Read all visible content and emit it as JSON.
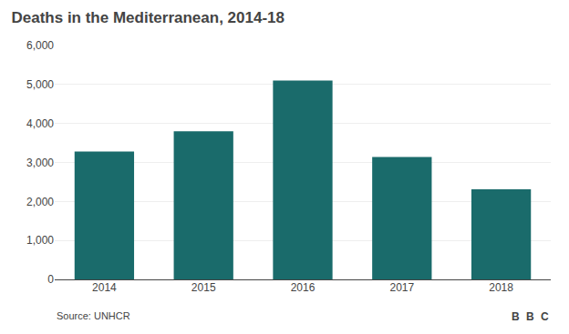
{
  "chart_data": {
    "type": "bar",
    "title": "Deaths in the Mediterranean, 2014-18",
    "categories": [
      "2014",
      "2015",
      "2016",
      "2017",
      "2018"
    ],
    "values": [
      3279,
      3800,
      5100,
      3139,
      2310
    ],
    "color": "#1a6b6b",
    "ylim": [
      0,
      6000
    ],
    "yticks": [
      0,
      {
        "value": 1000,
        "label": "1,000"
      },
      {
        "value": 2000,
        "label": "2,000"
      },
      {
        "value": 3000,
        "label": "3,000"
      },
      {
        "value": 4000,
        "label": "4,000"
      },
      {
        "value": 5000,
        "label": "5,000"
      },
      {
        "value": 6000,
        "label": "6,000"
      }
    ],
    "grid": true,
    "annotations": [
      "Source: UNHCR",
      "B",
      "B",
      "C"
    ]
  }
}
